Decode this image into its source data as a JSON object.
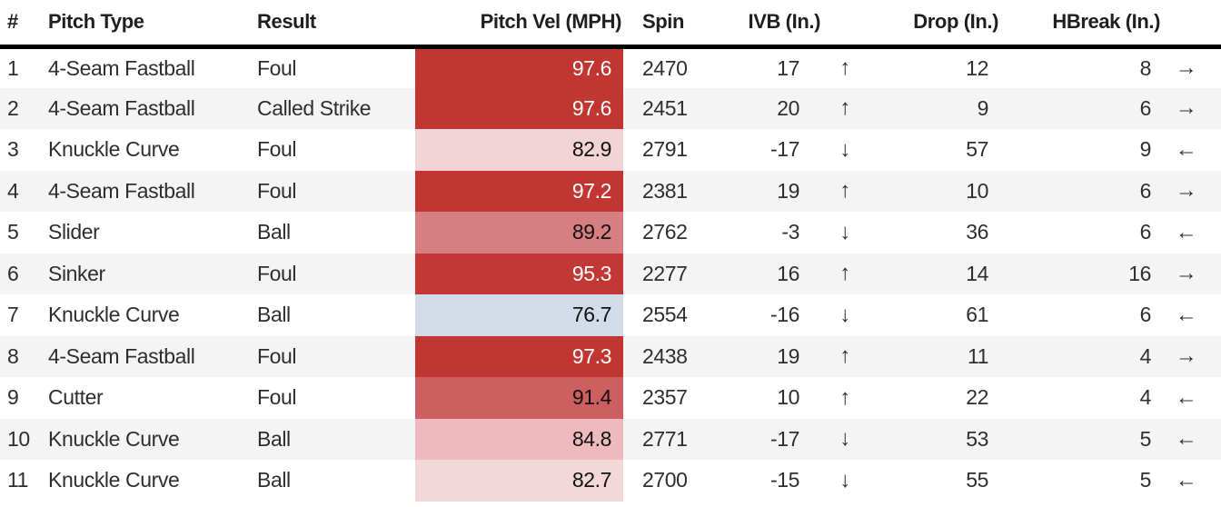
{
  "table": {
    "columns": [
      {
        "key": "num",
        "label": "#"
      },
      {
        "key": "pitch",
        "label": "Pitch Type"
      },
      {
        "key": "result",
        "label": "Result"
      },
      {
        "key": "vel",
        "label": "Pitch Vel (MPH)"
      },
      {
        "key": "spin",
        "label": "Spin"
      },
      {
        "key": "ivb",
        "label": "IVB (In.)"
      },
      {
        "key": "drop",
        "label": "Drop (In.)"
      },
      {
        "key": "hbreak",
        "label": "HBreak (In.)"
      }
    ],
    "rows": [
      {
        "num": "1",
        "pitch": "4-Seam Fastball",
        "result": "Foul",
        "vel": "97.6",
        "vel_bg": "#c23632",
        "vel_fg": "#ffffff",
        "spin": "2470",
        "ivb": "17",
        "ivb_dir": "up",
        "drop": "12",
        "hbreak": "8",
        "hbreak_dir": "right"
      },
      {
        "num": "2",
        "pitch": "4-Seam Fastball",
        "result": "Called Strike",
        "vel": "97.6",
        "vel_bg": "#c23632",
        "vel_fg": "#ffffff",
        "spin": "2451",
        "ivb": "20",
        "ivb_dir": "up",
        "drop": "9",
        "hbreak": "6",
        "hbreak_dir": "right"
      },
      {
        "num": "3",
        "pitch": "Knuckle Curve",
        "result": "Foul",
        "vel": "82.9",
        "vel_bg": "#f2d4d6",
        "vel_fg": "#111111",
        "spin": "2791",
        "ivb": "-17",
        "ivb_dir": "down",
        "drop": "57",
        "hbreak": "9",
        "hbreak_dir": "left"
      },
      {
        "num": "4",
        "pitch": "4-Seam Fastball",
        "result": "Foul",
        "vel": "97.2",
        "vel_bg": "#c23632",
        "vel_fg": "#ffffff",
        "spin": "2381",
        "ivb": "19",
        "ivb_dir": "up",
        "drop": "10",
        "hbreak": "6",
        "hbreak_dir": "right"
      },
      {
        "num": "5",
        "pitch": "Slider",
        "result": "Ball",
        "vel": "89.2",
        "vel_bg": "#d67e80",
        "vel_fg": "#111111",
        "spin": "2762",
        "ivb": "-3",
        "ivb_dir": "down",
        "drop": "36",
        "hbreak": "6",
        "hbreak_dir": "left"
      },
      {
        "num": "6",
        "pitch": "Sinker",
        "result": "Foul",
        "vel": "95.3",
        "vel_bg": "#c33834",
        "vel_fg": "#ffffff",
        "spin": "2277",
        "ivb": "16",
        "ivb_dir": "up",
        "drop": "14",
        "hbreak": "16",
        "hbreak_dir": "right"
      },
      {
        "num": "7",
        "pitch": "Knuckle Curve",
        "result": "Ball",
        "vel": "76.7",
        "vel_bg": "#d4dbe8",
        "vel_fg": "#111111",
        "spin": "2554",
        "ivb": "-16",
        "ivb_dir": "down",
        "drop": "61",
        "hbreak": "6",
        "hbreak_dir": "left"
      },
      {
        "num": "8",
        "pitch": "4-Seam Fastball",
        "result": "Foul",
        "vel": "97.3",
        "vel_bg": "#c23632",
        "vel_fg": "#ffffff",
        "spin": "2438",
        "ivb": "19",
        "ivb_dir": "up",
        "drop": "11",
        "hbreak": "4",
        "hbreak_dir": "right"
      },
      {
        "num": "9",
        "pitch": "Cutter",
        "result": "Foul",
        "vel": "91.4",
        "vel_bg": "#cd5f60",
        "vel_fg": "#111111",
        "spin": "2357",
        "ivb": "10",
        "ivb_dir": "up",
        "drop": "22",
        "hbreak": "4",
        "hbreak_dir": "left"
      },
      {
        "num": "10",
        "pitch": "Knuckle Curve",
        "result": "Ball",
        "vel": "84.8",
        "vel_bg": "#eebabe",
        "vel_fg": "#111111",
        "spin": "2771",
        "ivb": "-17",
        "ivb_dir": "down",
        "drop": "53",
        "hbreak": "5",
        "hbreak_dir": "left"
      },
      {
        "num": "11",
        "pitch": "Knuckle Curve",
        "result": "Ball",
        "vel": "82.7",
        "vel_bg": "#f4d7d9",
        "vel_fg": "#111111",
        "spin": "2700",
        "ivb": "-15",
        "ivb_dir": "down",
        "drop": "55",
        "hbreak": "5",
        "hbreak_dir": "left"
      }
    ]
  },
  "icons": {
    "up": "↑",
    "down": "↓",
    "left": "←",
    "right": "→"
  },
  "colors": {
    "header_border": "#000000",
    "row_alt_bg": "#f4f4f4",
    "vel_hot": "#c23632",
    "vel_cold": "#d4dbe8"
  }
}
